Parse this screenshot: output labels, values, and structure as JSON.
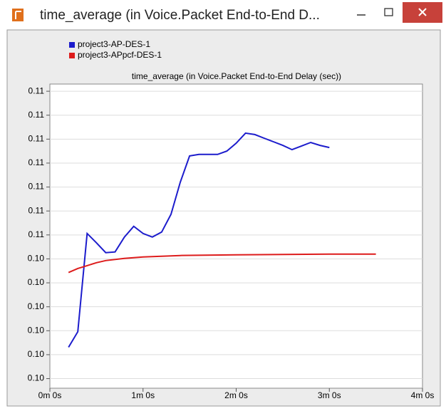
{
  "window": {
    "title": "time_average (in Voice.Packet End-to-End D..."
  },
  "chart_data": {
    "type": "line",
    "title": "time_average (in Voice.Packet End-to-End Delay (sec))",
    "series": [
      {
        "name": "project3-AP-DES-1",
        "color": "#1c1ccc",
        "x": [
          12,
          18,
          24,
          30,
          36,
          42,
          48,
          54,
          60,
          66,
          72,
          78,
          84,
          90,
          96,
          102,
          108,
          114,
          120,
          126,
          132,
          138,
          144,
          150,
          156,
          162,
          168,
          174,
          180
        ],
        "values": [
          0.10031,
          0.10096,
          0.10506,
          0.10467,
          0.10426,
          0.10429,
          0.10491,
          0.10536,
          0.10506,
          0.10491,
          0.10512,
          0.10586,
          0.1072,
          0.1083,
          0.10836,
          0.10836,
          0.10836,
          0.1085,
          0.10883,
          0.10925,
          0.10919,
          0.10904,
          0.10889,
          0.10874,
          0.10856,
          0.10871,
          0.10886,
          0.10874,
          0.10865
        ]
      },
      {
        "name": "project3-APpcf-DES-1",
        "color": "#dd1c1c",
        "x": [
          12,
          18,
          24,
          30,
          36,
          48,
          60,
          84,
          120,
          180,
          210
        ],
        "values": [
          0.10343,
          0.1036,
          0.10372,
          0.10384,
          0.10393,
          0.10402,
          0.10408,
          0.10414,
          0.10417,
          0.1042,
          0.1042
        ]
      }
    ],
    "xlim": [
      0,
      240
    ],
    "xticks": [
      {
        "value": 0,
        "label": "0m 0s"
      },
      {
        "value": 60,
        "label": "1m 0s"
      },
      {
        "value": 120,
        "label": "2m 0s"
      },
      {
        "value": 180,
        "label": "3m 0s"
      },
      {
        "value": 240,
        "label": "4m 0s"
      }
    ],
    "ylim": [
      0.0986,
      0.1113
    ],
    "yticks": [
      {
        "value": 0.099,
        "label": "0.10"
      },
      {
        "value": 0.1,
        "label": "0.10"
      },
      {
        "value": 0.101,
        "label": "0.10"
      },
      {
        "value": 0.102,
        "label": "0.10"
      },
      {
        "value": 0.103,
        "label": "0.10"
      },
      {
        "value": 0.104,
        "label": "0.10"
      },
      {
        "value": 0.105,
        "label": "0.11"
      },
      {
        "value": 0.106,
        "label": "0.11"
      },
      {
        "value": 0.107,
        "label": "0.11"
      },
      {
        "value": 0.108,
        "label": "0.11"
      },
      {
        "value": 0.109,
        "label": "0.11"
      },
      {
        "value": 0.11,
        "label": "0.11"
      },
      {
        "value": 0.111,
        "label": "0.11"
      }
    ],
    "grid": true,
    "legend": "top-left"
  }
}
